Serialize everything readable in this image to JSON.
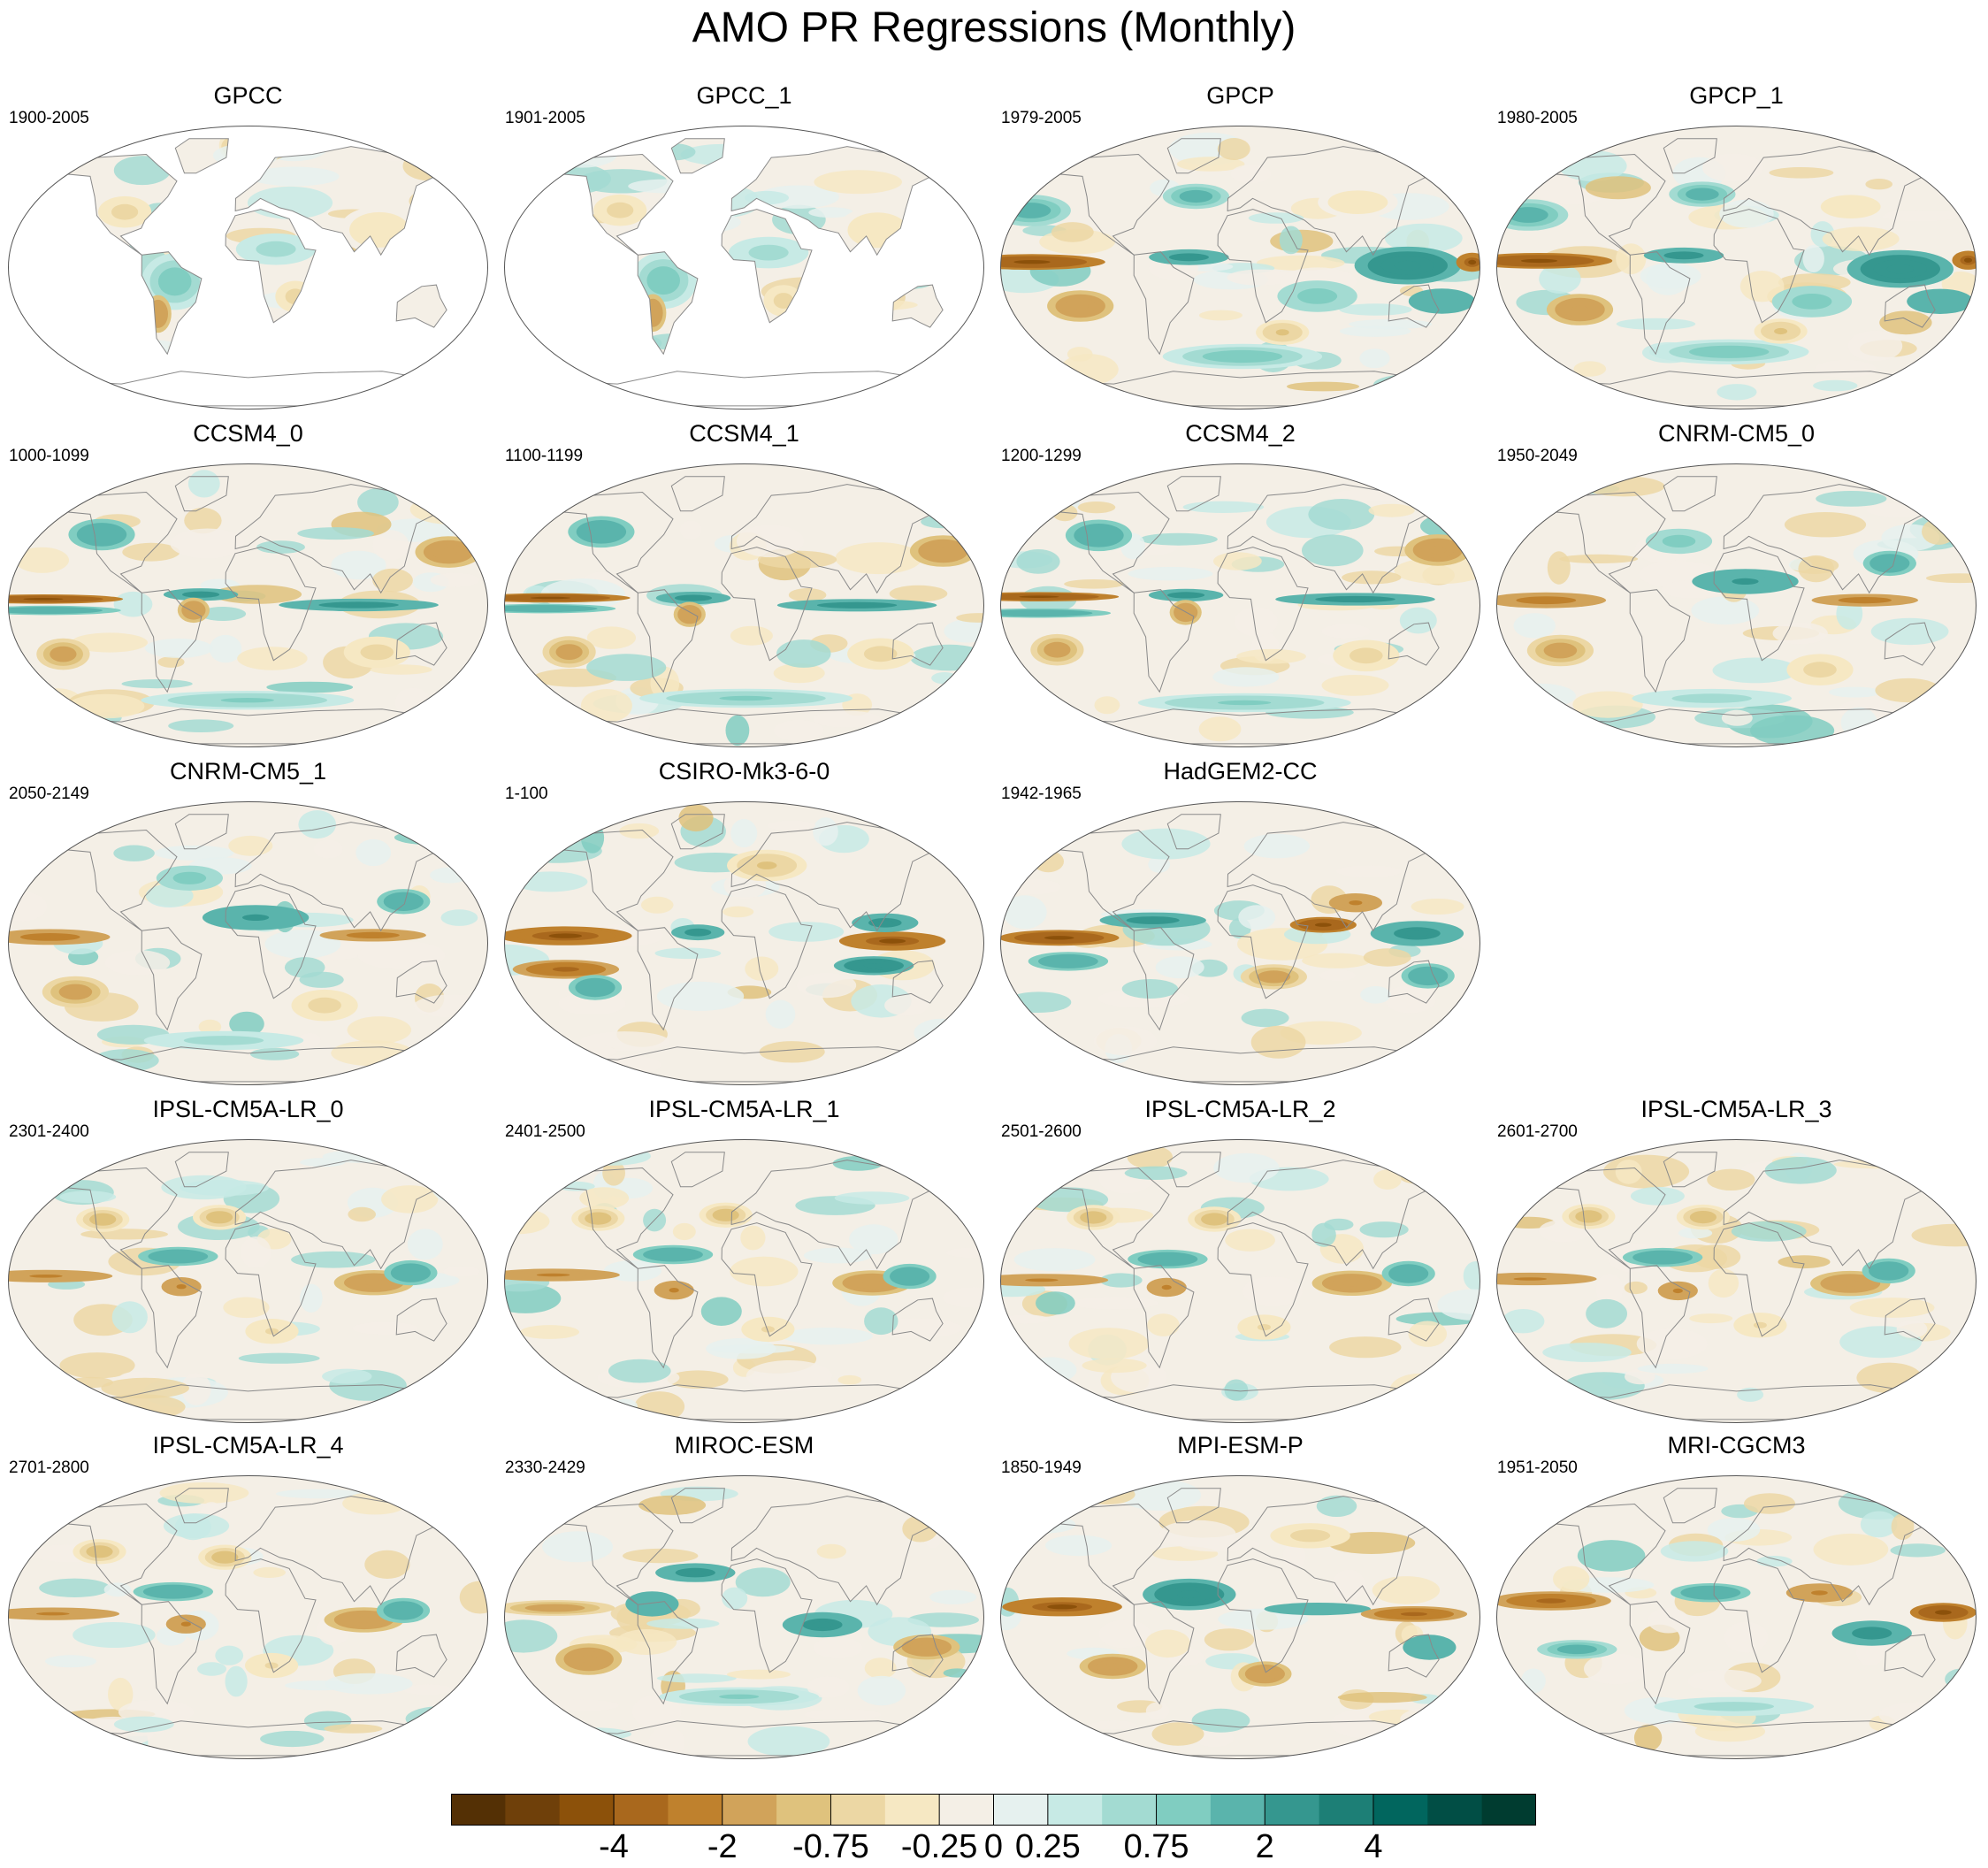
{
  "title": "AMO PR Regressions (Monthly)",
  "chart_data": {
    "type": "heatmap",
    "title": "AMO PR Regressions (Monthly)",
    "projection": "Robinson (global maps)",
    "panels": [
      {
        "name": "GPCC",
        "period": "1900-2005",
        "coverage": "land",
        "pattern": "gpcc"
      },
      {
        "name": "GPCC_1",
        "period": "1901-2005",
        "coverage": "land",
        "pattern": "gpcc"
      },
      {
        "name": "GPCP",
        "period": "1979-2005",
        "coverage": "global",
        "pattern": "gpcp"
      },
      {
        "name": "GPCP_1",
        "period": "1980-2005",
        "coverage": "global",
        "pattern": "gpcp"
      },
      {
        "name": "CCSM4_0",
        "period": "1000-1099",
        "coverage": "global",
        "pattern": "ccsm"
      },
      {
        "name": "CCSM4_1",
        "period": "1100-1199",
        "coverage": "global",
        "pattern": "ccsm"
      },
      {
        "name": "CCSM4_2",
        "period": "1200-1299",
        "coverage": "global",
        "pattern": "ccsm"
      },
      {
        "name": "CNRM-CM5_0",
        "period": "1950-2049",
        "coverage": "global",
        "pattern": "cnrm"
      },
      {
        "name": "CNRM-CM5_1",
        "period": "2050-2149",
        "coverage": "global",
        "pattern": "cnrm"
      },
      {
        "name": "CSIRO-Mk3-6-0",
        "period": "1-100",
        "coverage": "global",
        "pattern": "csiro"
      },
      {
        "name": "HadGEM2-CC",
        "period": "1942-1965",
        "coverage": "global",
        "pattern": "hadgem"
      },
      {
        "name": "IPSL-CM5A-LR_0",
        "period": "2301-2400",
        "coverage": "global",
        "pattern": "ipsl"
      },
      {
        "name": "IPSL-CM5A-LR_1",
        "period": "2401-2500",
        "coverage": "global",
        "pattern": "ipsl"
      },
      {
        "name": "IPSL-CM5A-LR_2",
        "period": "2501-2600",
        "coverage": "global",
        "pattern": "ipsl"
      },
      {
        "name": "IPSL-CM5A-LR_3",
        "period": "2601-2700",
        "coverage": "global",
        "pattern": "ipsl"
      },
      {
        "name": "IPSL-CM5A-LR_4",
        "period": "2701-2800",
        "coverage": "global",
        "pattern": "ipsl"
      },
      {
        "name": "MIROC-ESM",
        "period": "2330-2429",
        "coverage": "global",
        "pattern": "miroc"
      },
      {
        "name": "MPI-ESM-P",
        "period": "1850-1949",
        "coverage": "global",
        "pattern": "mpi"
      },
      {
        "name": "MRI-CGCM3",
        "period": "1951-2050",
        "coverage": "global",
        "pattern": "mri"
      }
    ],
    "colorbar": {
      "levels": [
        -6,
        -5,
        -4,
        -3,
        -2,
        -1,
        -0.75,
        -0.5,
        -0.25,
        0,
        0.25,
        0.5,
        0.75,
        1,
        2,
        3,
        4,
        5,
        6
      ],
      "tick_labels": [
        "-4",
        "-2",
        "-0.75",
        "-0.25",
        "0",
        "0.25",
        "0.75",
        "2",
        "4"
      ],
      "tick_values": [
        -4,
        -2,
        -0.75,
        -0.25,
        0,
        0.25,
        0.75,
        2,
        4
      ],
      "colors": [
        "#543005",
        "#6f400a",
        "#8c510a",
        "#a9681d",
        "#bf812d",
        "#d1a35a",
        "#dfc27d",
        "#ecd7a4",
        "#f6e8c3",
        "#f4efe6",
        "#e6f1ef",
        "#c7eae5",
        "#a3dbd2",
        "#80cdc1",
        "#5ab4ac",
        "#35978f",
        "#1d7f76",
        "#01665e",
        "#014e45",
        "#003c30"
      ]
    }
  }
}
